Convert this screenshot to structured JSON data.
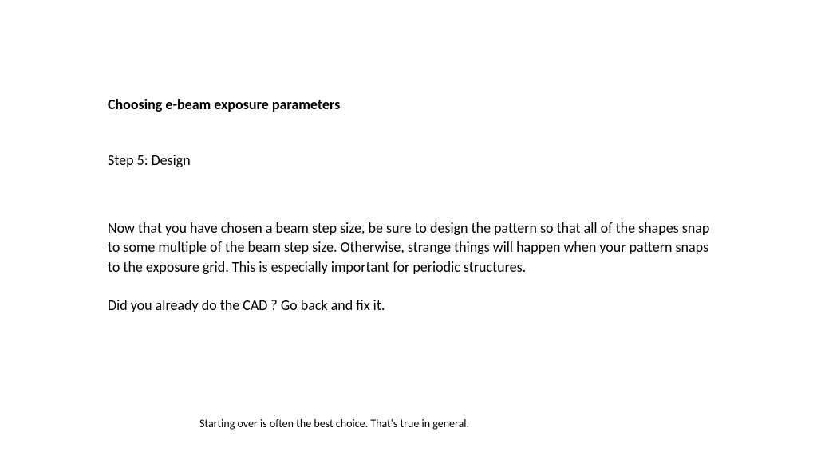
{
  "slide": {
    "title": "Choosing e-beam exposure parameters",
    "step_heading": "Step 5:  Design",
    "paragraph1": "Now that you have chosen a beam step size, be sure to design the pattern so that all of the shapes snap to some multiple of the beam step size. Otherwise, strange things will happen when your pattern snaps to the exposure grid. This is especially important for periodic structures.",
    "paragraph2": "Did you already do the CAD ?  Go back and fix it.",
    "footer": "Starting over is often the best choice. That's true in general."
  },
  "style": {
    "background_color": "#ffffff",
    "text_color": "#000000",
    "title_fontsize": 18,
    "body_fontsize": 18,
    "footer_fontsize": 14,
    "font_family": "Calibri"
  }
}
